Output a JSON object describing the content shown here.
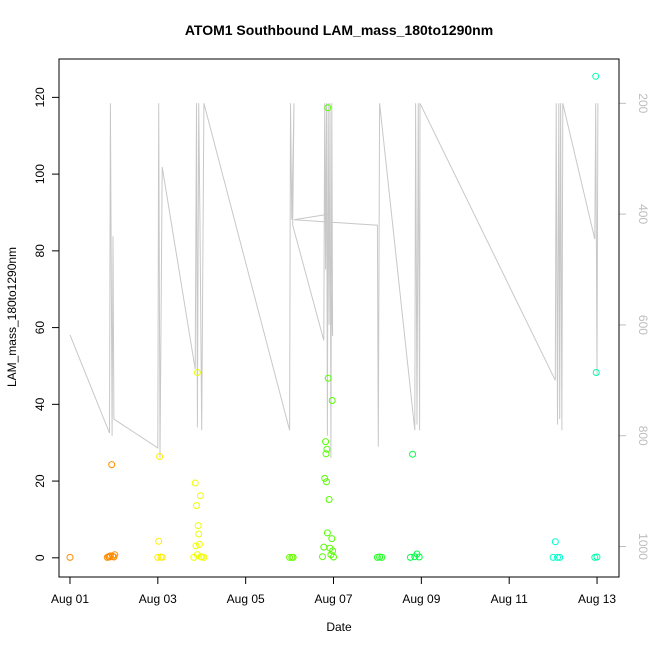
{
  "chart_data": {
    "type": "scatter",
    "title": "ATOM1 Southbound LAM_mass_180to1290nm",
    "xlabel": "Date",
    "ylabel": "LAM_mass_180to1290nm",
    "x_ticks": [
      "Aug 01",
      "Aug 03",
      "Aug 05",
      "Aug 07",
      "Aug 09",
      "Aug 11",
      "Aug 13"
    ],
    "x_tick_days": [
      1,
      3,
      5,
      7,
      9,
      11,
      13
    ],
    "xlim": [
      0.75,
      13.5
    ],
    "y_ticks": [
      0,
      20,
      40,
      60,
      80,
      100,
      120
    ],
    "ylim": [
      -5,
      130
    ],
    "y2_ticks": [
      200,
      400,
      600,
      800,
      1000
    ],
    "y2lim": [
      1055,
      120
    ],
    "y2_color": "#bdbdbd",
    "grid": false,
    "points": [
      {
        "x": 1.0,
        "y": 0.1,
        "color": "#ff8c00"
      },
      {
        "x": 1.85,
        "y": 0.1,
        "color": "#ff8c00"
      },
      {
        "x": 1.88,
        "y": 0.3,
        "color": "#ff8c00"
      },
      {
        "x": 1.9,
        "y": 0.2,
        "color": "#ff8c00"
      },
      {
        "x": 1.92,
        "y": 0.5,
        "color": "#ff8c00"
      },
      {
        "x": 1.95,
        "y": 24.3,
        "color": "#ff8c00"
      },
      {
        "x": 1.97,
        "y": 0.4,
        "color": "#ff8c00"
      },
      {
        "x": 2.0,
        "y": 0.2,
        "color": "#ff8c00"
      },
      {
        "x": 2.02,
        "y": 0.8,
        "color": "#ff8c00"
      },
      {
        "x": 3.0,
        "y": 0.1,
        "color": "#ffee00"
      },
      {
        "x": 3.02,
        "y": 4.3,
        "color": "#ffee00"
      },
      {
        "x": 3.04,
        "y": 26.4,
        "color": "#ffee00"
      },
      {
        "x": 3.07,
        "y": 0.2,
        "color": "#ffee00"
      },
      {
        "x": 3.1,
        "y": 0.1,
        "color": "#ffee00"
      },
      {
        "x": 3.82,
        "y": 0.1,
        "color": "#eeff00"
      },
      {
        "x": 3.85,
        "y": 19.5,
        "color": "#eeff00"
      },
      {
        "x": 3.87,
        "y": 3.1,
        "color": "#eeff00"
      },
      {
        "x": 3.88,
        "y": 13.6,
        "color": "#eeff00"
      },
      {
        "x": 3.9,
        "y": 0.8,
        "color": "#eeff00"
      },
      {
        "x": 3.9,
        "y": 48.3,
        "color": "#eeff00"
      },
      {
        "x": 3.92,
        "y": 8.4,
        "color": "#eeff00"
      },
      {
        "x": 3.93,
        "y": 6.2,
        "color": "#eeff00"
      },
      {
        "x": 3.95,
        "y": 3.5,
        "color": "#eeff00"
      },
      {
        "x": 3.97,
        "y": 16.2,
        "color": "#eeff00"
      },
      {
        "x": 3.98,
        "y": 0.3,
        "color": "#eeff00"
      },
      {
        "x": 4.0,
        "y": 0.2,
        "color": "#eeff00"
      },
      {
        "x": 4.05,
        "y": 0.1,
        "color": "#eeff00"
      },
      {
        "x": 6.0,
        "y": 0.1,
        "color": "#66ff00"
      },
      {
        "x": 6.05,
        "y": 0.1,
        "color": "#66ff00"
      },
      {
        "x": 6.08,
        "y": 0.1,
        "color": "#66ff00"
      },
      {
        "x": 6.75,
        "y": 0.3,
        "color": "#55ff00"
      },
      {
        "x": 6.78,
        "y": 2.8,
        "color": "#55ff00"
      },
      {
        "x": 6.8,
        "y": 20.7,
        "color": "#55ff00"
      },
      {
        "x": 6.82,
        "y": 30.3,
        "color": "#55ff00"
      },
      {
        "x": 6.83,
        "y": 27.1,
        "color": "#55ff00"
      },
      {
        "x": 6.84,
        "y": 19.8,
        "color": "#55ff00"
      },
      {
        "x": 6.85,
        "y": 28.3,
        "color": "#55ff00"
      },
      {
        "x": 6.86,
        "y": 6.5,
        "color": "#55ff00"
      },
      {
        "x": 6.87,
        "y": 117.3,
        "color": "#55ff00"
      },
      {
        "x": 6.88,
        "y": 46.8,
        "color": "#55ff00"
      },
      {
        "x": 6.9,
        "y": 15.2,
        "color": "#55ff00"
      },
      {
        "x": 6.92,
        "y": 2.5,
        "color": "#55ff00"
      },
      {
        "x": 6.94,
        "y": 0.8,
        "color": "#55ff00"
      },
      {
        "x": 6.96,
        "y": 5.0,
        "color": "#55ff00"
      },
      {
        "x": 6.97,
        "y": 41.0,
        "color": "#55ff00"
      },
      {
        "x": 6.98,
        "y": 1.8,
        "color": "#55ff00"
      },
      {
        "x": 7.0,
        "y": 0.2,
        "color": "#55ff00"
      },
      {
        "x": 8.0,
        "y": 0.1,
        "color": "#22ff22"
      },
      {
        "x": 8.05,
        "y": 0.2,
        "color": "#22ff22"
      },
      {
        "x": 8.1,
        "y": 0.1,
        "color": "#22ff22"
      },
      {
        "x": 8.75,
        "y": 0.1,
        "color": "#00ff44"
      },
      {
        "x": 8.8,
        "y": 27.0,
        "color": "#00ff44"
      },
      {
        "x": 8.85,
        "y": 0.3,
        "color": "#00ff44"
      },
      {
        "x": 8.9,
        "y": 1.0,
        "color": "#00ff44"
      },
      {
        "x": 8.95,
        "y": 0.2,
        "color": "#00ff44"
      },
      {
        "x": 12.0,
        "y": 0.1,
        "color": "#00ffcc"
      },
      {
        "x": 12.05,
        "y": 4.2,
        "color": "#00ffcc"
      },
      {
        "x": 12.1,
        "y": 0.1,
        "color": "#00ffcc"
      },
      {
        "x": 12.15,
        "y": 0.1,
        "color": "#00ffcc"
      },
      {
        "x": 12.95,
        "y": 0.1,
        "color": "#00ffaa"
      },
      {
        "x": 12.97,
        "y": 125.5,
        "color": "#00ffaa"
      },
      {
        "x": 12.98,
        "y": 48.3,
        "color": "#00ffaa"
      },
      {
        "x": 13.0,
        "y": 0.2,
        "color": "#00ffaa"
      }
    ],
    "altitude_track": [
      [
        1.0,
        618
      ],
      [
        1.9,
        795
      ],
      [
        1.92,
        200
      ],
      [
        1.94,
        520
      ],
      [
        1.96,
        800
      ],
      [
        1.98,
        440
      ],
      [
        2.0,
        770
      ],
      [
        3.0,
        822
      ],
      [
        3.02,
        200
      ],
      [
        3.05,
        840
      ],
      [
        3.1,
        315
      ],
      [
        3.85,
        680
      ],
      [
        3.88,
        200
      ],
      [
        3.9,
        785
      ],
      [
        3.93,
        200
      ],
      [
        3.96,
        420
      ],
      [
        4.0,
        790
      ],
      [
        4.05,
        200
      ],
      [
        6.0,
        790
      ],
      [
        6.02,
        200
      ],
      [
        6.05,
        410
      ],
      [
        6.1,
        200
      ],
      [
        6.07,
        420
      ],
      [
        6.78,
        628
      ],
      [
        6.8,
        200
      ],
      [
        6.82,
        500
      ],
      [
        6.84,
        200
      ],
      [
        6.86,
        800
      ],
      [
        6.88,
        200
      ],
      [
        6.9,
        600
      ],
      [
        6.92,
        200
      ],
      [
        6.94,
        840
      ],
      [
        6.96,
        200
      ],
      [
        6.98,
        620
      ],
      [
        6.9,
        400
      ],
      [
        6.1,
        410
      ],
      [
        8.0,
        420
      ],
      [
        8.02,
        820
      ],
      [
        8.05,
        200
      ],
      [
        8.85,
        790
      ],
      [
        8.87,
        200
      ],
      [
        8.9,
        780
      ],
      [
        8.93,
        200
      ],
      [
        8.96,
        790
      ],
      [
        8.97,
        200
      ],
      [
        12.05,
        700
      ],
      [
        12.07,
        200
      ],
      [
        12.1,
        780
      ],
      [
        12.13,
        200
      ],
      [
        12.15,
        770
      ],
      [
        12.17,
        200
      ],
      [
        12.2,
        790
      ],
      [
        12.22,
        200
      ],
      [
        12.95,
        445
      ],
      [
        12.97,
        200
      ],
      [
        13.0,
        690
      ],
      [
        13.02,
        200
      ]
    ]
  }
}
